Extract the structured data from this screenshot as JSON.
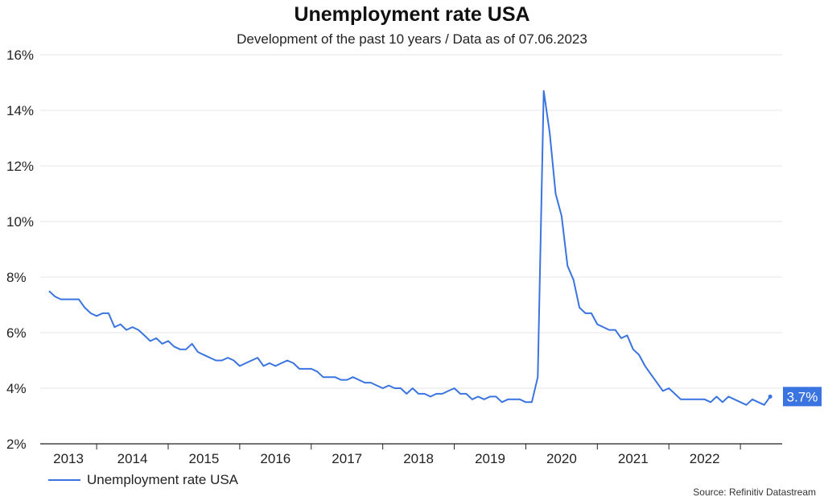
{
  "chart_data": {
    "type": "line",
    "title": "Unemployment rate USA",
    "subtitle": "Development of the past 10 years / Data as of 07.06.2023",
    "xlabel": "",
    "ylabel": "",
    "ylim": [
      2,
      16
    ],
    "y_ticks": [
      "2%",
      "4%",
      "6%",
      "8%",
      "10%",
      "12%",
      "14%",
      "16%"
    ],
    "x_ticks": [
      "2013",
      "2014",
      "2015",
      "2016",
      "2017",
      "2018",
      "2019",
      "2020",
      "2021",
      "2022"
    ],
    "grid": true,
    "legend": "bottom-left",
    "series": [
      {
        "name": "Unemployment rate USA",
        "color": "#3a74e0",
        "start": "2013-05",
        "frequency": "monthly",
        "values": [
          7.5,
          7.3,
          7.2,
          7.2,
          7.2,
          7.2,
          6.9,
          6.7,
          6.6,
          6.7,
          6.7,
          6.2,
          6.3,
          6.1,
          6.2,
          6.1,
          5.9,
          5.7,
          5.8,
          5.6,
          5.7,
          5.5,
          5.4,
          5.4,
          5.6,
          5.3,
          5.2,
          5.1,
          5.0,
          5.0,
          5.1,
          5.0,
          4.8,
          4.9,
          5.0,
          5.1,
          4.8,
          4.9,
          4.8,
          4.9,
          5.0,
          4.9,
          4.7,
          4.7,
          4.7,
          4.6,
          4.4,
          4.4,
          4.4,
          4.3,
          4.3,
          4.4,
          4.3,
          4.2,
          4.2,
          4.1,
          4.0,
          4.1,
          4.0,
          4.0,
          3.8,
          4.0,
          3.8,
          3.8,
          3.7,
          3.8,
          3.8,
          3.9,
          4.0,
          3.8,
          3.8,
          3.6,
          3.7,
          3.6,
          3.7,
          3.7,
          3.5,
          3.6,
          3.6,
          3.6,
          3.5,
          3.5,
          4.4,
          14.7,
          13.2,
          11.0,
          10.2,
          8.4,
          7.9,
          6.9,
          6.7,
          6.7,
          6.3,
          6.2,
          6.1,
          6.1,
          5.8,
          5.9,
          5.4,
          5.2,
          4.8,
          4.5,
          4.2,
          3.9,
          4.0,
          3.8,
          3.6,
          3.6,
          3.6,
          3.6,
          3.6,
          3.5,
          3.7,
          3.5,
          3.7,
          3.6,
          3.5,
          3.4,
          3.6,
          3.5,
          3.4,
          3.7
        ]
      }
    ],
    "last_value_label": "3.7%",
    "source": "Source: Refinitiv Datastream"
  }
}
